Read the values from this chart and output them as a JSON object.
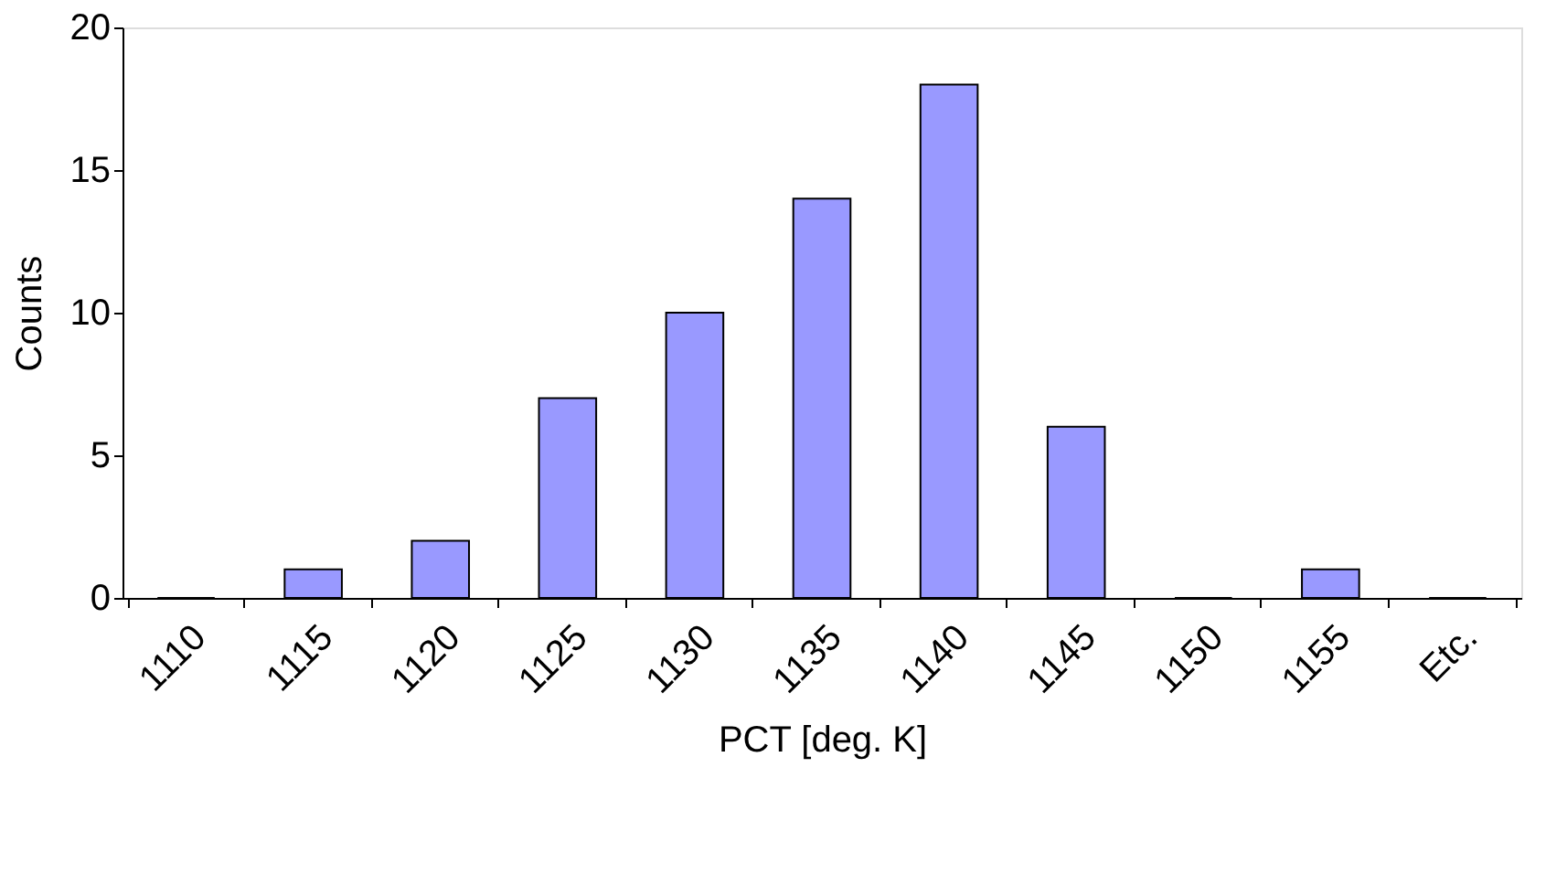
{
  "chart_data": {
    "type": "bar",
    "xlabel": "PCT [deg. K]",
    "ylabel": "Counts",
    "categories": [
      "1110",
      "1115",
      "1120",
      "1125",
      "1130",
      "1135",
      "1140",
      "1145",
      "1150",
      "1155",
      "Etc."
    ],
    "values": [
      0,
      1,
      2,
      7,
      10,
      14,
      18,
      6,
      0,
      1,
      0
    ],
    "color": "#9999ff",
    "ylim": [
      0,
      20
    ],
    "yticks": [
      0,
      5,
      10,
      15,
      20
    ],
    "grid": false
  }
}
